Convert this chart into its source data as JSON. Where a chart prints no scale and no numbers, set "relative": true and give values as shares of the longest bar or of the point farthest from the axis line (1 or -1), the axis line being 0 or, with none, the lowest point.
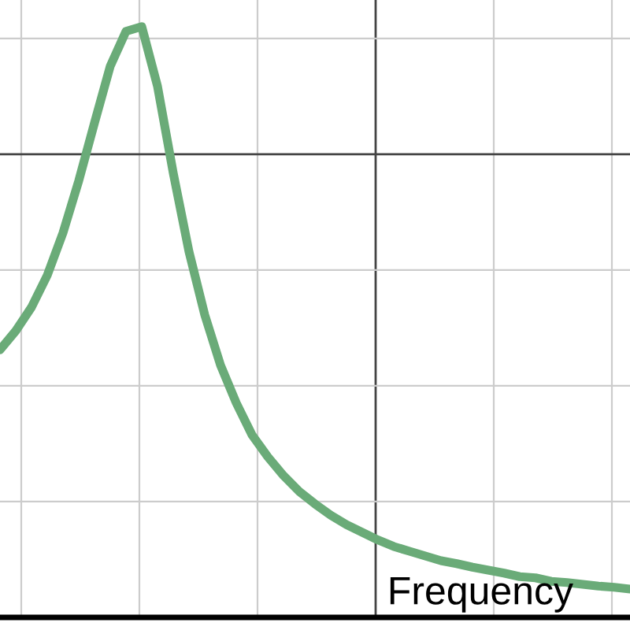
{
  "chart_data": {
    "type": "line",
    "relative": true,
    "xlabel": "Frequency",
    "grid": true,
    "ref_lines": [
      {
        "axis": "y",
        "value": 0.784,
        "color": "#444444",
        "line_style": "solid"
      }
    ],
    "marker": "none",
    "line_style": "solid",
    "categories": [
      null,
      null,
      null,
      null,
      null,
      null,
      null,
      null,
      null,
      null,
      null,
      null,
      null,
      null,
      null,
      null,
      null,
      null,
      null,
      null,
      null,
      null,
      null,
      null,
      null,
      null,
      null,
      null,
      null,
      null,
      null,
      null,
      null,
      null,
      null,
      null,
      null,
      null,
      null,
      null,
      null
    ],
    "series": [
      {
        "color": "#6aab78",
        "values": [
          0.453,
          0.485,
          0.525,
          0.579,
          0.651,
          0.739,
          0.837,
          0.933,
          0.992,
          1,
          0.899,
          0.752,
          0.619,
          0.512,
          0.427,
          0.363,
          0.309,
          0.272,
          0.24,
          0.213,
          0.192,
          0.173,
          0.157,
          0.144,
          0.131,
          0.12,
          0.112,
          0.104,
          0.096,
          0.091,
          0.085,
          0.08,
          0.075,
          0.069,
          0.067,
          0.061,
          0.059,
          0.056,
          0.053,
          0.051,
          0.048
        ]
      }
    ]
  }
}
